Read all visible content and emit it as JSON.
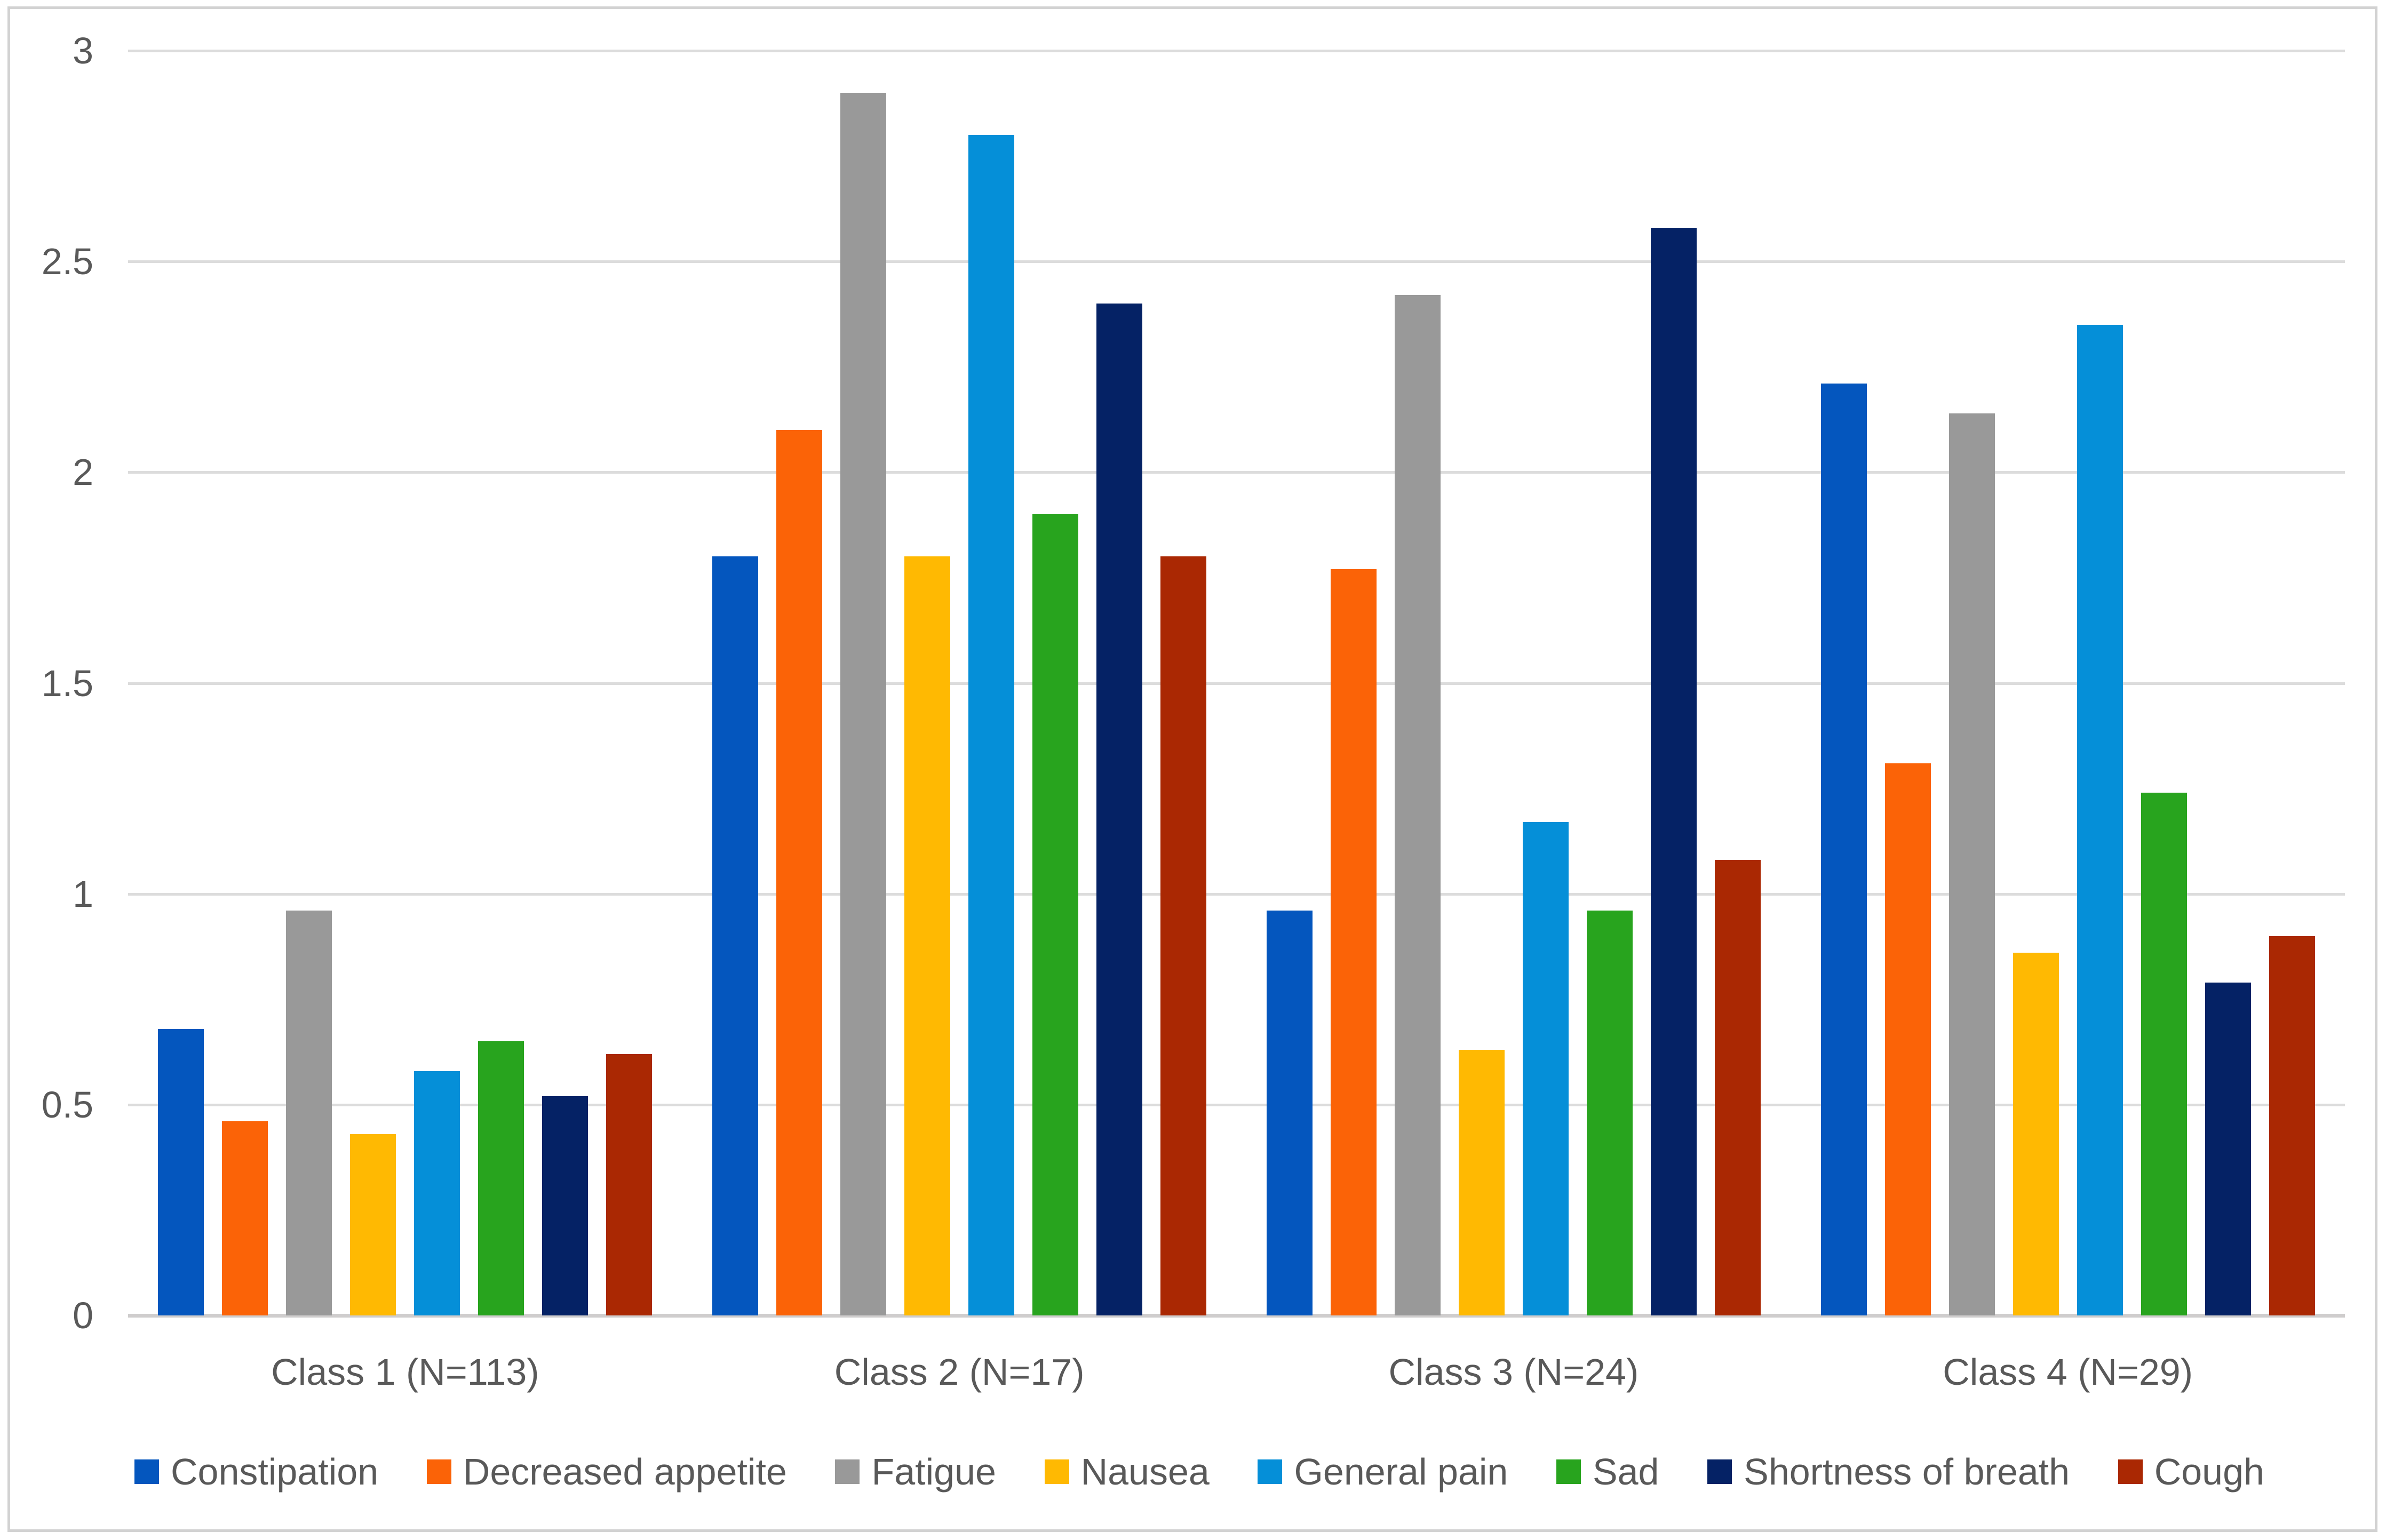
{
  "chart_data": {
    "type": "bar",
    "title": "",
    "xlabel": "",
    "ylabel": "",
    "categories": [
      "Class 1 (N=113)",
      "Class 2 (N=17)",
      "Class 3 (N=24)",
      "Class 4 (N=29)"
    ],
    "series": [
      {
        "name": "Constipation",
        "color": "#0456be",
        "values": [
          0.68,
          1.8,
          0.96,
          2.21
        ]
      },
      {
        "name": "Decreased appetite",
        "color": "#fb6307",
        "values": [
          0.46,
          2.1,
          1.77,
          1.31
        ]
      },
      {
        "name": "Fatigue",
        "color": "#999999",
        "values": [
          0.96,
          2.9,
          2.42,
          2.14
        ]
      },
      {
        "name": "Nausea",
        "color": "#ffb902",
        "values": [
          0.43,
          1.8,
          0.63,
          0.86
        ]
      },
      {
        "name": "General pain",
        "color": "#058fd8",
        "values": [
          0.58,
          2.8,
          1.17,
          2.35
        ]
      },
      {
        "name": "Sad",
        "color": "#28a41e",
        "values": [
          0.65,
          1.9,
          0.96,
          1.24
        ]
      },
      {
        "name": "Shortness of breath",
        "color": "#052265",
        "values": [
          0.52,
          2.4,
          2.58,
          0.79
        ]
      },
      {
        "name": "Cough",
        "color": "#aa2803",
        "values": [
          0.62,
          1.8,
          1.08,
          0.9
        ]
      }
    ],
    "yticks": [
      "0",
      "0.5",
      "1",
      "1.5",
      "2",
      "2.5",
      "3"
    ],
    "ylim": [
      0,
      3
    ],
    "grid": true,
    "legend_position": "bottom"
  },
  "style_colors": {
    "grid": "#dcdcdc",
    "zero_axis": "#cfcdcd",
    "text": "#595959",
    "frame_border": "#d2d2d2",
    "background": "#ffffff"
  }
}
